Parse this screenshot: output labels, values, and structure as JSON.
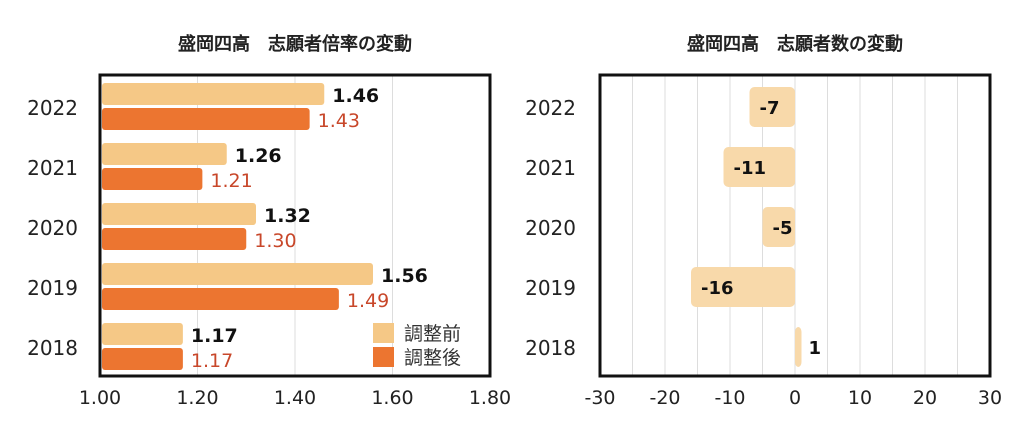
{
  "chart_data": [
    {
      "type": "bar",
      "orientation": "horizontal",
      "title": "盛岡四高　志願者倍率の変動",
      "categories": [
        "2022",
        "2021",
        "2020",
        "2019",
        "2018"
      ],
      "series": [
        {
          "name": "調整前",
          "values": [
            1.46,
            1.26,
            1.32,
            1.56,
            1.17
          ],
          "color": "#f5c886"
        },
        {
          "name": "調整後",
          "values": [
            1.43,
            1.21,
            1.3,
            1.49,
            1.17
          ],
          "color": "#ec7530"
        }
      ],
      "value_labels": {
        "before": [
          "1.46",
          "1.26",
          "1.32",
          "1.56",
          "1.17"
        ],
        "after": [
          "1.43",
          "1.21",
          "1.30",
          "1.49",
          "1.17"
        ]
      },
      "xlim": [
        1.0,
        1.8
      ],
      "xticks": [
        "1.00",
        "1.20",
        "1.40",
        "1.60",
        "1.80"
      ],
      "xtick_values": [
        1.0,
        1.2,
        1.4,
        1.6,
        1.8
      ],
      "xlabel": "",
      "ylabel": "",
      "grid": true,
      "legend": {
        "position": "bottom-right",
        "entries": [
          "調整前",
          "調整後"
        ]
      },
      "after_label_color": "#c8472a"
    },
    {
      "type": "bar",
      "orientation": "horizontal",
      "title": "盛岡四高　志願者数の変動",
      "categories": [
        "2022",
        "2021",
        "2020",
        "2019",
        "2018"
      ],
      "values": [
        -7,
        -11,
        -5,
        -16,
        1
      ],
      "value_labels": [
        "-7",
        "-11",
        "-5",
        "-16",
        "1"
      ],
      "color": "#f8d9aa",
      "xlim": [
        -30,
        30
      ],
      "xticks": [
        "-30",
        "-20",
        "-10",
        "0",
        "10",
        "20",
        "30"
      ],
      "xtick_values": [
        -30,
        -20,
        -10,
        0,
        10,
        20,
        30
      ],
      "grid_step": 5,
      "xlabel": "",
      "ylabel": "",
      "grid": true,
      "legend": null
    }
  ]
}
